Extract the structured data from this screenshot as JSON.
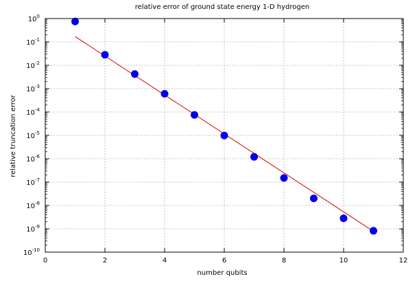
{
  "chart_data": {
    "type": "scatter",
    "title": "relative error of ground state energy 1-D hydrogen",
    "xlabel": "number qubits",
    "ylabel": "relative truncation error",
    "xlim": [
      0,
      12
    ],
    "ylim_exponents": [
      -10,
      0
    ],
    "y_scale": "log10",
    "grid": true,
    "x_ticks": [
      0,
      2,
      4,
      6,
      8,
      10,
      12
    ],
    "x_tick_labels": [
      "0",
      "2",
      "4",
      "6",
      "8",
      "10",
      "12"
    ],
    "y_ticks": [
      {
        "base": "10",
        "exp": "0"
      },
      {
        "base": "10",
        "exp": "-1"
      },
      {
        "base": "10",
        "exp": "-2"
      },
      {
        "base": "10",
        "exp": "-3"
      },
      {
        "base": "10",
        "exp": "-4"
      },
      {
        "base": "10",
        "exp": "-5"
      },
      {
        "base": "10",
        "exp": "-6"
      },
      {
        "base": "10",
        "exp": "-7"
      },
      {
        "base": "10",
        "exp": "-8"
      },
      {
        "base": "10",
        "exp": "-9"
      },
      {
        "base": "10",
        "exp": "-10"
      }
    ],
    "series": [
      {
        "kind": "points",
        "color": "#0000ee",
        "x": [
          1,
          2,
          3,
          4,
          5,
          6,
          7,
          8,
          9,
          10,
          11
        ],
        "y": [
          0.75,
          0.028,
          0.0042,
          0.0006,
          7.5e-05,
          9.8e-06,
          1.2e-06,
          1.5e-07,
          2e-08,
          2.8e-09,
          8.2e-10
        ]
      },
      {
        "kind": "line",
        "color": "#dd0000",
        "x": [
          1,
          11
        ],
        "y": [
          0.17,
          7.8e-10
        ]
      }
    ]
  }
}
